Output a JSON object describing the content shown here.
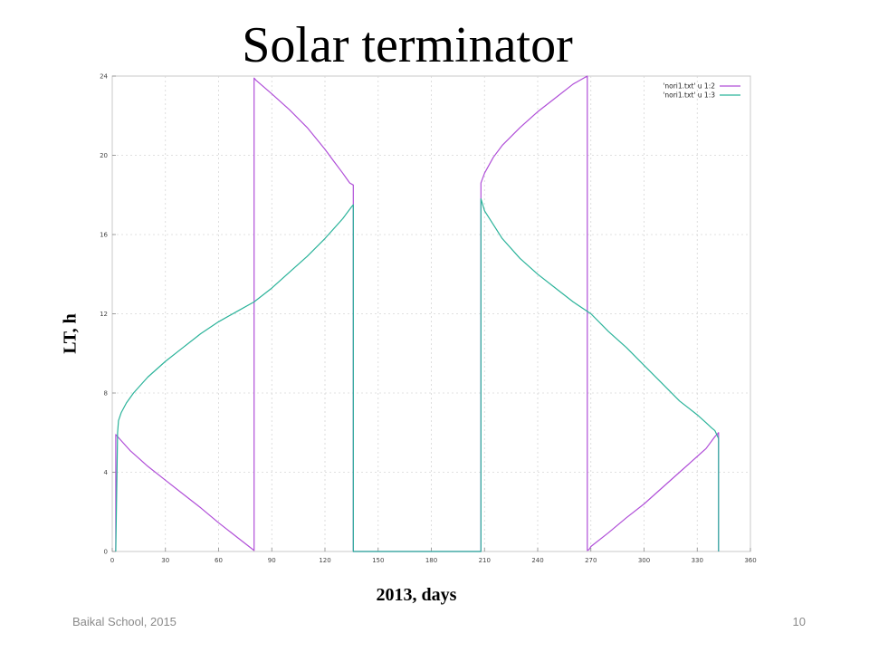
{
  "slide": {
    "title": "Solar terminator",
    "footer_left": "Baikal School, 2015",
    "page_number": "10"
  },
  "chart_data": {
    "type": "line",
    "xlabel": "2013, days",
    "ylabel": "LT, h",
    "xlim": [
      0,
      360
    ],
    "ylim": [
      0,
      24
    ],
    "x_ticks": [
      0,
      30,
      60,
      90,
      120,
      150,
      180,
      210,
      240,
      270,
      300,
      330,
      360
    ],
    "y_ticks": [
      0,
      4,
      8,
      12,
      16,
      20,
      24
    ],
    "grid": true,
    "legend_position": "top-right",
    "series": [
      {
        "name": "'nori1.txt' u 1:2",
        "color": "#b04fd8",
        "x": [
          2,
          2,
          3,
          5,
          10,
          20,
          30,
          40,
          50,
          60,
          70,
          80,
          80,
          81,
          90,
          100,
          110,
          120,
          125,
          130,
          134,
          136,
          136,
          208,
          208,
          210,
          215,
          220,
          230,
          240,
          250,
          260,
          268,
          268,
          269,
          270,
          280,
          290,
          300,
          310,
          320,
          330,
          335,
          340,
          342,
          342
        ],
        "y": [
          0,
          5.9,
          5.8,
          5.6,
          5.1,
          4.3,
          3.6,
          2.9,
          2.2,
          1.45,
          0.75,
          0.05,
          23.9,
          23.8,
          23.1,
          22.3,
          21.4,
          20.3,
          19.7,
          19.1,
          18.6,
          18.5,
          0,
          0,
          18.6,
          19.1,
          19.9,
          20.5,
          21.4,
          22.2,
          22.9,
          23.6,
          24,
          0.05,
          0.1,
          0.25,
          0.95,
          1.7,
          2.4,
          3.2,
          4.0,
          4.8,
          5.2,
          5.8,
          6.0,
          0
        ]
      },
      {
        "name": "'nori1.txt' u 1:3",
        "color": "#2bb39a",
        "x": [
          2,
          3,
          3.5,
          5,
          8,
          12,
          20,
          30,
          40,
          50,
          60,
          70,
          80,
          90,
          100,
          110,
          120,
          130,
          135,
          136,
          136,
          208,
          208,
          210,
          220,
          230,
          240,
          250,
          260,
          270,
          280,
          290,
          300,
          310,
          320,
          330,
          335,
          338,
          340,
          341,
          342,
          342
        ],
        "y": [
          0,
          6.0,
          6.6,
          7.0,
          7.5,
          8.0,
          8.8,
          9.6,
          10.3,
          11.0,
          11.6,
          12.1,
          12.6,
          13.3,
          14.1,
          14.9,
          15.8,
          16.8,
          17.4,
          17.5,
          0,
          0,
          17.8,
          17.2,
          15.8,
          14.8,
          14.0,
          13.3,
          12.6,
          12.0,
          11.1,
          10.3,
          9.4,
          8.5,
          7.6,
          6.9,
          6.5,
          6.25,
          6.1,
          5.9,
          5.7,
          0
        ]
      }
    ]
  }
}
